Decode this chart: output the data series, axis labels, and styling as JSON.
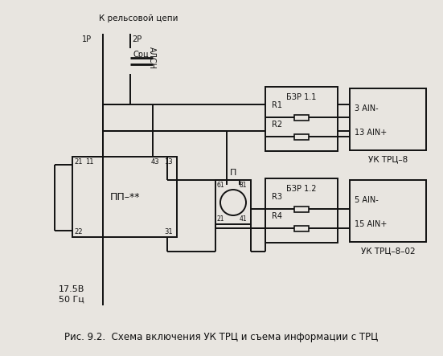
{
  "title": "Рис. 9.2.  Схема включения УК ТРЦ и съема информации с ТРЦ",
  "bg_color": "#e8e5e0",
  "line_color": "#111111",
  "label_top": "К рельсовой цепи",
  "label_1p": "1Р",
  "label_2p": "2Р",
  "label_src": "Срц",
  "label_alsn": "АЛСН",
  "label_pp": "ПП–**",
  "label_p": "П",
  "label_bzr11": "БЗР 1.1",
  "label_r1": "R1",
  "label_r2": "R2",
  "label_bzr12": "БЗР 1.2",
  "label_r3": "R3",
  "label_r4": "R4",
  "label_uktrc8": "УК ТРЦ–8",
  "label_uktrc8_02": "УК ТРЦ–8–02",
  "label_3ain": "3 AIN-",
  "label_13ain": "13 AIN+",
  "label_5ain": "5 AIN-",
  "label_15ain": "15 AIN+",
  "label_voltage": "17.5В",
  "label_freq": "50 Гц",
  "pin_21_pp": "21",
  "pin_11_pp": "11",
  "pin_43_pp": "43",
  "pin_13_pp": "13",
  "pin_22_pp": "22",
  "pin_31_pp": "31",
  "pin_61_p": "61",
  "pin_81_p": "81",
  "pin_21_p": "21",
  "pin_41_p": "41"
}
